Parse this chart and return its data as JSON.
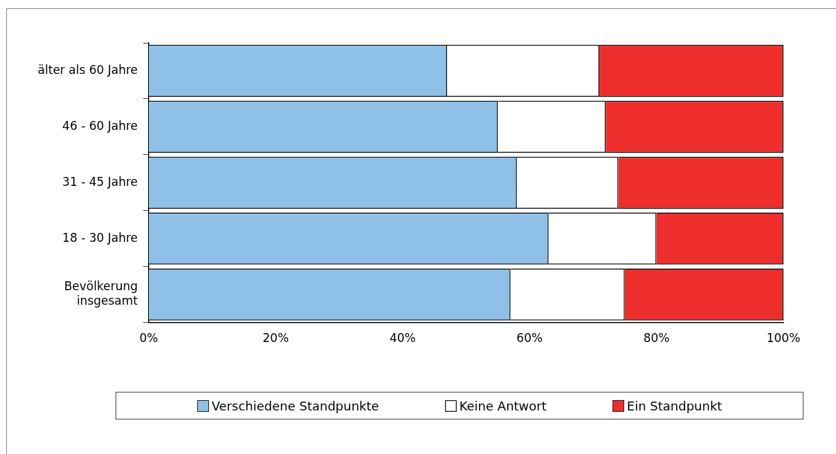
{
  "chart_data": {
    "type": "bar",
    "orientation": "horizontal",
    "stacked": true,
    "categories": [
      "älter als 60 Jahre",
      "46 - 60 Jahre",
      "31 - 45 Jahre",
      "18 - 30 Jahre",
      "Bevölkerung insgesamt"
    ],
    "series": [
      {
        "name": "Verschiedene Standpunkte",
        "color": "#8fc1e8",
        "values": [
          47,
          55,
          58,
          63,
          57
        ]
      },
      {
        "name": "Keine Antwort",
        "color": "#ffffff",
        "values": [
          24,
          17,
          16,
          17,
          18
        ]
      },
      {
        "name": "Ein Standpunkt",
        "color": "#ee2e2c",
        "values": [
          29,
          28,
          26,
          20,
          25
        ]
      }
    ],
    "xlim": [
      0,
      100
    ],
    "xticks": [
      {
        "value": 0,
        "label": "0%"
      },
      {
        "value": 20,
        "label": "20%"
      },
      {
        "value": 40,
        "label": "40%"
      },
      {
        "value": 60,
        "label": "60%"
      },
      {
        "value": 80,
        "label": "80%"
      },
      {
        "value": 100,
        "label": "100%"
      }
    ],
    "legend": "bottom"
  }
}
